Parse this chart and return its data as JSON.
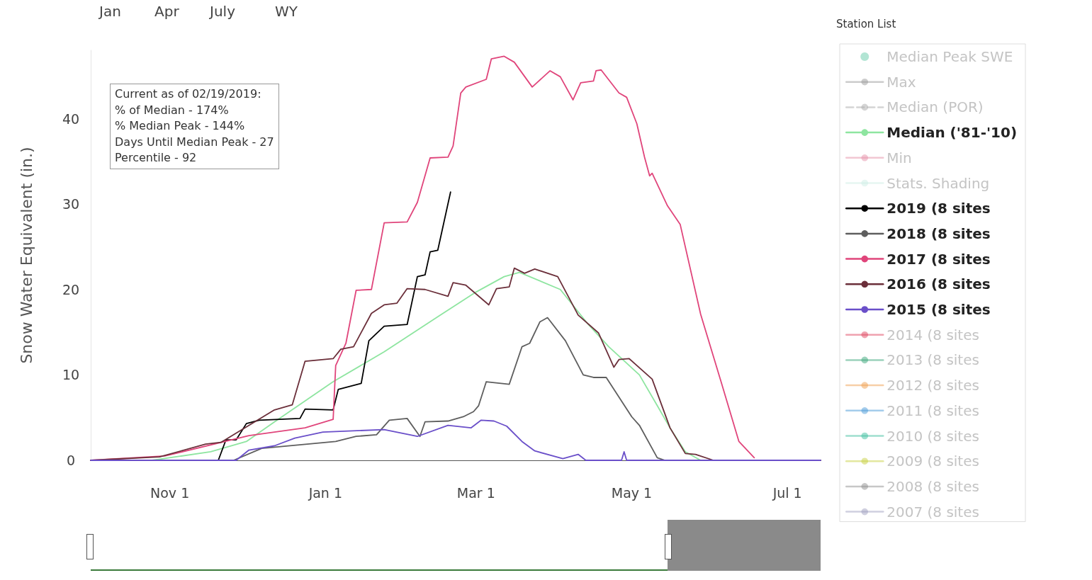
{
  "chart_data": {
    "type": "line",
    "ylabel": "Snow Water Equivalent (in.)",
    "legend_title": "Station List",
    "annotations": [
      "Jan",
      "Apr",
      "July",
      "WY",
      "Current as of 02/19/2019:\n% of Median - 174%\n% Median Peak - 144%\nDays Until Median Peak - 27\nPercentile - 92"
    ],
    "xlim": [
      "2018-10-01",
      "2019-07-14"
    ],
    "xticks": [
      {
        "value": "2018-11-01",
        "label": "Nov 1"
      },
      {
        "value": "2019-01-01",
        "label": "Jan 1"
      },
      {
        "value": "2019-03-01",
        "label": "Mar 1"
      },
      {
        "value": "2019-05-01",
        "label": "May 1"
      },
      {
        "value": "2019-07-01",
        "label": "Jul 1"
      }
    ],
    "ylim": [
      0,
      48
    ],
    "yticks": [
      0,
      10,
      20,
      30,
      40
    ],
    "grid": false,
    "legend": "right",
    "marker": "none",
    "series": [
      {
        "name": "Median Peak SWE",
        "type": "scatter",
        "color": "#66ccaa"
      },
      {
        "name": "Max",
        "color": "#999999"
      },
      {
        "name": "Median (POR)",
        "color": "#aaaaaa",
        "line_style": "dashed"
      },
      {
        "name": "Median ('81-'10)",
        "color": "#8ee5a0",
        "x": [
          "2018-10-01",
          "2018-10-25",
          "2018-11-17",
          "2018-12-01",
          "2018-12-12",
          "2019-01-04",
          "2019-01-24",
          "2019-02-14",
          "2019-03-01",
          "2019-03-12",
          "2019-03-18",
          "2019-04-03",
          "2019-04-14",
          "2019-04-22",
          "2019-05-04",
          "2019-05-11",
          "2019-05-16",
          "2019-05-22",
          "2019-05-28",
          "2019-07-14"
        ],
        "values": [
          0,
          0,
          1,
          2.2,
          4.5,
          9.2,
          12.7,
          16.8,
          19.7,
          21.5,
          22,
          20,
          15.9,
          13.3,
          10,
          6.4,
          3.8,
          1,
          0,
          0
        ]
      },
      {
        "name": "Min",
        "color": "#e58fa8"
      },
      {
        "name": "Stats. Shading",
        "type": "area",
        "color": "#cdeee6"
      },
      {
        "name": "2019 (8 sites",
        "color": "#000000",
        "x": [
          "2018-10-01",
          "2018-11-20",
          "2018-11-23",
          "2018-11-27",
          "2018-12-01",
          "2018-12-06",
          "2018-12-22",
          "2018-12-24",
          "2019-01-04",
          "2019-01-06",
          "2019-01-15",
          "2019-01-18",
          "2019-01-24",
          "2019-02-02",
          "2019-02-06",
          "2019-02-09",
          "2019-02-11",
          "2019-02-14",
          "2019-02-19"
        ],
        "values": [
          0,
          0,
          2.4,
          2.4,
          4.3,
          4.7,
          4.9,
          6,
          5.9,
          8.3,
          9,
          14,
          15.7,
          15.9,
          21.5,
          21.7,
          24.4,
          24.6,
          31.4
        ]
      },
      {
        "name": "2018 (8 sites",
        "color": "#5e5e5e",
        "x": [
          "2018-10-01",
          "2018-11-26",
          "2018-12-07",
          "2019-01-05",
          "2019-01-13",
          "2019-01-21",
          "2019-01-26",
          "2019-02-02",
          "2019-02-07",
          "2019-02-09",
          "2019-02-18",
          "2019-02-24",
          "2019-02-28",
          "2019-03-02",
          "2019-03-05",
          "2019-03-14",
          "2019-03-19",
          "2019-03-22",
          "2019-03-26",
          "2019-03-29",
          "2019-04-05",
          "2019-04-12",
          "2019-04-16",
          "2019-04-21",
          "2019-05-01",
          "2019-05-04",
          "2019-05-11",
          "2019-05-14",
          "2019-07-14"
        ],
        "values": [
          0,
          0,
          1.4,
          2.2,
          2.8,
          3,
          4.7,
          4.9,
          2.8,
          4.5,
          4.6,
          5.1,
          5.7,
          6.4,
          9.2,
          8.9,
          13.3,
          13.7,
          16.2,
          16.7,
          14,
          10,
          9.7,
          9.7,
          5.1,
          4.1,
          0.3,
          0,
          0
        ]
      },
      {
        "name": "2017 (8 sites",
        "color": "#e0457b",
        "x": [
          "2018-10-01",
          "2018-10-30",
          "2018-12-02",
          "2018-12-24",
          "2019-01-04",
          "2019-01-05",
          "2019-01-09",
          "2019-01-13",
          "2019-01-19",
          "2019-01-24",
          "2019-02-02",
          "2019-02-06",
          "2019-02-11",
          "2019-02-18",
          "2019-02-20",
          "2019-02-23",
          "2019-02-25",
          "2019-03-05",
          "2019-03-07",
          "2019-03-12",
          "2019-03-16",
          "2019-03-23",
          "2019-03-30",
          "2019-04-03",
          "2019-04-08",
          "2019-04-11",
          "2019-04-16",
          "2019-04-17",
          "2019-04-19",
          "2019-04-26",
          "2019-04-29",
          "2019-05-03",
          "2019-05-06",
          "2019-05-08",
          "2019-05-09",
          "2019-05-15",
          "2019-05-20",
          "2019-05-28",
          "2019-06-05",
          "2019-06-12",
          "2019-06-18"
        ],
        "values": [
          0,
          0.5,
          2.9,
          3.8,
          4.8,
          11.1,
          13.7,
          19.9,
          20,
          27.8,
          27.9,
          30.2,
          35.4,
          35.5,
          36.8,
          43,
          43.7,
          44.6,
          47,
          47.3,
          46.6,
          43.7,
          45.6,
          44.9,
          42.2,
          44.2,
          44.4,
          45.6,
          45.7,
          43,
          42.5,
          39.4,
          35.5,
          33.3,
          33.6,
          29.8,
          27.6,
          17.1,
          9.2,
          2.2,
          0.3
        ]
      },
      {
        "name": "2016 (8 sites",
        "color": "#6b2f3a",
        "x": [
          "2018-10-01",
          "2018-10-28",
          "2018-11-15",
          "2018-11-21",
          "2018-12-12",
          "2018-12-19",
          "2018-12-24",
          "2019-01-04",
          "2019-01-07",
          "2019-01-12",
          "2019-01-19",
          "2019-01-24",
          "2019-01-29",
          "2019-02-02",
          "2019-02-09",
          "2019-02-18",
          "2019-02-20",
          "2019-02-25",
          "2019-03-06",
          "2019-03-09",
          "2019-03-14",
          "2019-03-16",
          "2019-03-20",
          "2019-03-24",
          "2019-04-02",
          "2019-04-10",
          "2019-04-18",
          "2019-04-24",
          "2019-04-26",
          "2019-04-30",
          "2019-05-09",
          "2019-05-16",
          "2019-05-22",
          "2019-05-26",
          "2019-06-02",
          "2019-07-14"
        ],
        "values": [
          0,
          0.4,
          1.9,
          2.1,
          5.9,
          6.5,
          11.6,
          11.9,
          13,
          13.3,
          17.2,
          18.2,
          18.4,
          20.1,
          20,
          19.2,
          20.8,
          20.5,
          18.2,
          20.1,
          20.3,
          22.5,
          21.9,
          22.4,
          21.5,
          17,
          14.9,
          10.9,
          11.8,
          11.9,
          9.5,
          3.8,
          0.8,
          0.7,
          0,
          0
        ]
      },
      {
        "name": "2015 (8 sites",
        "color": "#6a4fc9",
        "x": [
          "2018-10-01",
          "2018-11-27",
          "2018-12-02",
          "2018-12-12",
          "2018-12-20",
          "2018-12-31",
          "2019-01-24",
          "2019-02-06",
          "2019-02-18",
          "2019-02-27",
          "2019-03-03",
          "2019-03-08",
          "2019-03-13",
          "2019-03-19",
          "2019-03-24",
          "2019-04-04",
          "2019-04-10",
          "2019-04-13",
          "2019-04-27",
          "2019-04-28",
          "2019-04-29",
          "2019-07-14"
        ],
        "values": [
          0,
          0,
          1.2,
          1.7,
          2.6,
          3.3,
          3.6,
          2.8,
          4.1,
          3.8,
          4.7,
          4.6,
          4,
          2.2,
          1.1,
          0.2,
          0.7,
          0,
          0,
          1,
          0,
          0
        ]
      },
      {
        "name": "2014 (8 sites",
        "color": "#e0455f"
      },
      {
        "name": "2013 (8 sites",
        "color": "#3aa57a"
      },
      {
        "name": "2012 (8 sites",
        "color": "#f0a050"
      },
      {
        "name": "2011 (8 sites",
        "color": "#4a9ad8"
      },
      {
        "name": "2010 (8 sites",
        "color": "#40c0a0"
      },
      {
        "name": "2009 (8 sites",
        "color": "#c8d040"
      },
      {
        "name": "2008 (8 sites",
        "color": "#909090"
      },
      {
        "name": "2007 (8 sites",
        "color": "#a0a0c0"
      }
    ]
  }
}
